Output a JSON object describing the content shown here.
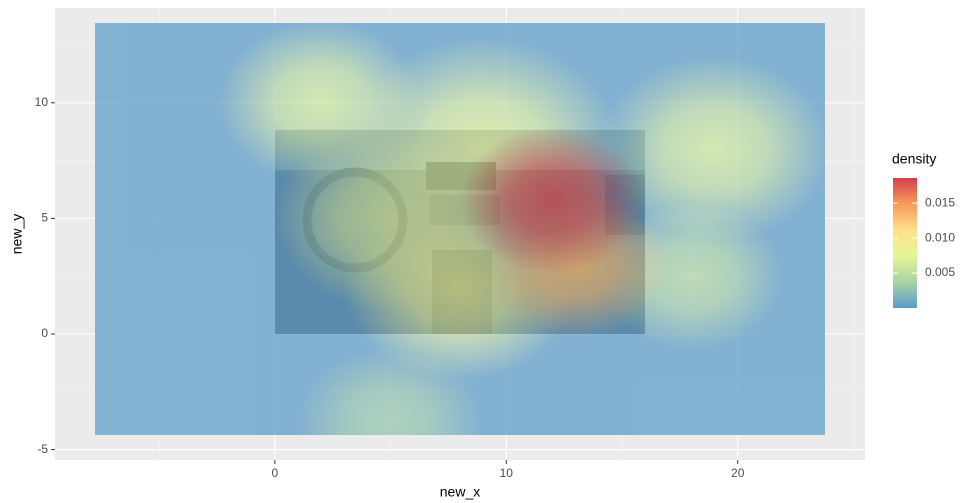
{
  "chart_data": {
    "type": "density-heatmap",
    "x_label": "new_x",
    "y_label": "new_y",
    "legend_title": "density",
    "xlim": [
      -9.5,
      25.5
    ],
    "xticks": [
      0,
      10,
      20
    ],
    "ylim": [
      -5.45,
      14.1
    ],
    "yticks": [
      -5,
      0,
      5,
      10
    ],
    "clim": [
      0,
      0.0186
    ],
    "cticks": [
      0.005,
      {
        "value": 0.01,
        "label": "0.010"
      },
      0.015
    ],
    "colorscale": [
      "#5b9bc8",
      "#a8d3a4",
      "#e6f598",
      "#fee08b",
      "#f79b5a",
      "#d53e4f"
    ],
    "grid": true,
    "hotspots": {
      "x": [
        5,
        18,
        2,
        19,
        5,
        9,
        8,
        13,
        12
      ],
      "y": [
        -3.8,
        2.5,
        10,
        8,
        5,
        8,
        2,
        3,
        5.8
      ],
      "spread": [
        2,
        2,
        2.2,
        2.5,
        2.5,
        3,
        2.5,
        2,
        2
      ],
      "values": [
        0.003,
        0.004,
        0.006,
        0.006,
        0.006,
        0.007,
        0.008,
        0.013,
        0.018
      ]
    }
  }
}
